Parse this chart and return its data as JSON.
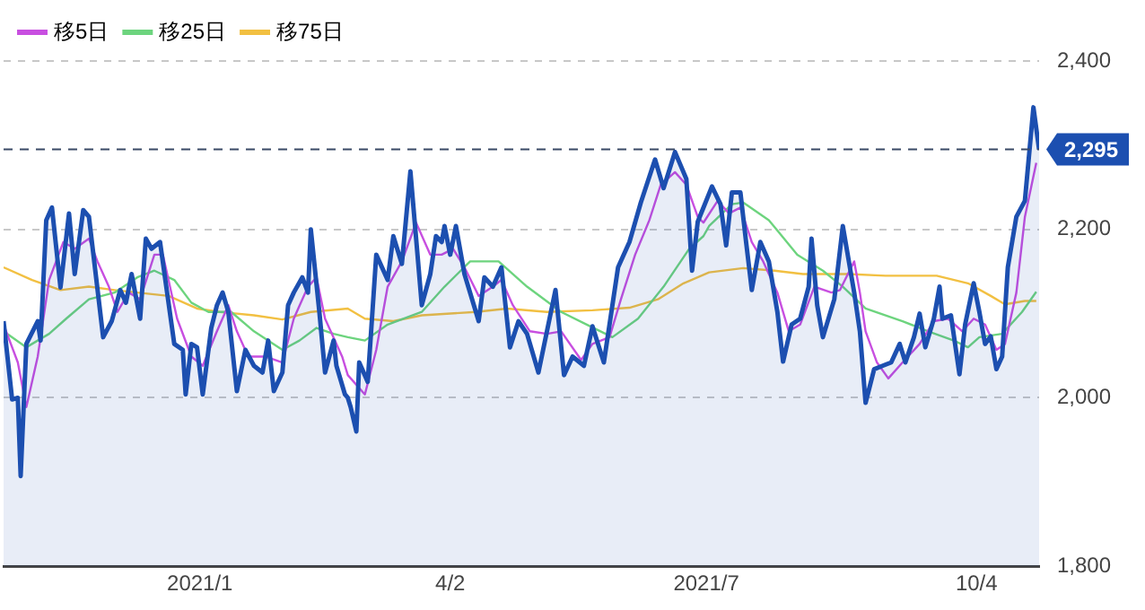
{
  "chart_data": {
    "type": "line",
    "legend": "top left",
    "grid": "y",
    "marker": "none",
    "line_style": "solid",
    "xlim": [
      "2020-10-27",
      "2021-10-26"
    ],
    "xticks": [
      {
        "value": "2021-01-04",
        "label": "2021/1"
      },
      {
        "value": "2021-04-02",
        "label": "4/2"
      },
      {
        "value": "2021-07-01",
        "label": "2021/7"
      },
      {
        "value": "2021-10-04",
        "label": "10/4"
      }
    ],
    "ylim": [
      1800,
      2400
    ],
    "yticks": [
      {
        "value": 1800,
        "label": "1,800"
      },
      {
        "value": 2000,
        "label": "2,000"
      },
      {
        "value": 2200,
        "label": "2,200"
      },
      {
        "value": 2400,
        "label": "2,400"
      }
    ],
    "ref_lines": [
      {
        "axis": "y",
        "value": 2295,
        "label": "2,295",
        "color": "#3a4a66",
        "line_style": "dashed"
      }
    ],
    "series": [
      {
        "type": "area",
        "color": "#1c4fb0",
        "x": [
          "2020-10-27",
          "2020-10-30",
          "2020-11-01",
          "2020-11-02",
          "2020-11-04",
          "2020-11-08",
          "2020-11-09",
          "2020-11-11",
          "2020-11-13",
          "2020-11-16",
          "2020-11-19",
          "2020-11-21",
          "2020-11-24",
          "2020-11-26",
          "2020-12-01",
          "2020-12-04",
          "2020-12-07",
          "2020-12-09",
          "2020-12-11",
          "2020-12-14",
          "2020-12-16",
          "2020-12-18",
          "2020-12-21",
          "2020-12-26",
          "2020-12-29",
          "2020-12-30",
          "2021-01-01",
          "2021-01-03",
          "2021-01-05",
          "2021-01-08",
          "2021-01-10",
          "2021-01-12",
          "2021-01-14",
          "2021-01-17",
          "2021-01-20",
          "2021-01-23",
          "2021-01-26",
          "2021-01-28",
          "2021-01-30",
          "2021-02-02",
          "2021-02-04",
          "2021-02-06",
          "2021-02-09",
          "2021-02-11",
          "2021-02-12",
          "2021-02-15",
          "2021-02-17",
          "2021-02-20",
          "2021-02-21",
          "2021-02-24",
          "2021-02-25",
          "2021-02-26",
          "2021-02-28",
          "2021-03-01",
          "2021-03-04",
          "2021-03-07",
          "2021-03-11",
          "2021-03-13",
          "2021-03-16",
          "2021-03-19",
          "2021-03-23",
          "2021-03-26",
          "2021-03-28",
          "2021-03-30",
          "2021-03-31",
          "2021-04-02",
          "2021-04-04",
          "2021-04-07",
          "2021-04-12",
          "2021-04-14",
          "2021-04-17",
          "2021-04-20",
          "2021-04-23",
          "2021-04-26",
          "2021-04-29",
          "2021-05-03",
          "2021-05-06",
          "2021-05-09",
          "2021-05-12",
          "2021-05-15",
          "2021-05-19",
          "2021-05-22",
          "2021-05-26",
          "2021-05-31",
          "2021-06-04",
          "2021-06-08",
          "2021-06-13",
          "2021-06-16",
          "2021-06-20",
          "2021-06-24",
          "2021-06-26",
          "2021-06-28",
          "2021-07-03",
          "2021-07-06",
          "2021-07-08",
          "2021-07-10",
          "2021-07-13",
          "2021-07-15",
          "2021-07-17",
          "2021-07-20",
          "2021-07-23",
          "2021-07-26",
          "2021-07-28",
          "2021-07-31",
          "2021-08-03",
          "2021-08-06",
          "2021-08-07",
          "2021-08-09",
          "2021-08-11",
          "2021-08-15",
          "2021-08-18",
          "2021-08-22",
          "2021-08-24",
          "2021-08-26",
          "2021-08-29",
          "2021-09-01",
          "2021-09-04",
          "2021-09-07",
          "2021-09-09",
          "2021-09-12",
          "2021-09-14",
          "2021-09-16",
          "2021-09-19",
          "2021-09-21",
          "2021-09-22",
          "2021-09-25",
          "2021-09-28",
          "2021-09-30",
          "2021-10-03",
          "2021-10-05",
          "2021-10-07",
          "2021-10-09",
          "2021-10-11",
          "2021-10-13",
          "2021-10-15",
          "2021-10-18",
          "2021-10-21",
          "2021-10-24",
          "2021-10-26"
        ],
        "values": [
          2091,
          1998,
          2000,
          1907,
          2064,
          2091,
          2068,
          2211,
          2226,
          2131,
          2219,
          2147,
          2223,
          2215,
          2072,
          2091,
          2128,
          2113,
          2147,
          2094,
          2189,
          2177,
          2185,
          2064,
          2057,
          2004,
          2064,
          2060,
          2004,
          2083,
          2110,
          2125,
          2102,
          2008,
          2057,
          2038,
          2030,
          2068,
          2008,
          2030,
          2110,
          2125,
          2143,
          2125,
          2200,
          2102,
          2030,
          2068,
          2038,
          2004,
          2000,
          1989,
          1960,
          2042,
          2019,
          2170,
          2140,
          2192,
          2159,
          2269,
          2110,
          2147,
          2192,
          2185,
          2204,
          2170,
          2204,
          2147,
          2091,
          2143,
          2132,
          2155,
          2060,
          2091,
          2076,
          2030,
          2079,
          2128,
          2027,
          2049,
          2038,
          2085,
          2042,
          2155,
          2185,
          2232,
          2283,
          2249,
          2292,
          2260,
          2151,
          2209,
          2251,
          2230,
          2181,
          2244,
          2244,
          2185,
          2128,
          2185,
          2162,
          2102,
          2043,
          2087,
          2094,
          2132,
          2189,
          2110,
          2072,
          2117,
          2204,
          2125,
          2079,
          1994,
          2034,
          2038,
          2042,
          2064,
          2042,
          2072,
          2100,
          2060,
          2094,
          2132,
          2094,
          2098,
          2028,
          2087,
          2136,
          2102,
          2064,
          2073,
          2034,
          2049,
          2155,
          2215,
          2234,
          2345,
          2295
        ]
      },
      {
        "type": "line",
        "name": "移5日",
        "color": "#c84fe0",
        "x": [
          "2020-10-27",
          "2020-11-01",
          "2020-11-04",
          "2020-11-08",
          "2020-11-12",
          "2020-11-17",
          "2020-11-21",
          "2020-11-26",
          "2020-11-29",
          "2020-12-03",
          "2020-12-06",
          "2020-12-10",
          "2020-12-14",
          "2020-12-19",
          "2020-12-22",
          "2020-12-27",
          "2021-01-01",
          "2021-01-05",
          "2021-01-10",
          "2021-01-14",
          "2021-01-17",
          "2021-01-21",
          "2021-01-27",
          "2021-02-02",
          "2021-02-06",
          "2021-02-11",
          "2021-02-14",
          "2021-02-17",
          "2021-02-23",
          "2021-02-25",
          "2021-03-03",
          "2021-03-07",
          "2021-03-11",
          "2021-03-16",
          "2021-03-21",
          "2021-03-26",
          "2021-03-30",
          "2021-04-03",
          "2021-04-07",
          "2021-04-12",
          "2021-04-17",
          "2021-04-20",
          "2021-04-24",
          "2021-04-30",
          "2021-05-06",
          "2021-05-11",
          "2021-05-18",
          "2021-05-22",
          "2021-05-28",
          "2021-06-01",
          "2021-06-06",
          "2021-06-11",
          "2021-06-15",
          "2021-06-20",
          "2021-06-24",
          "2021-06-28",
          "2021-06-30",
          "2021-07-05",
          "2021-07-09",
          "2021-07-13",
          "2021-07-17",
          "2021-07-21",
          "2021-07-26",
          "2021-07-30",
          "2021-08-03",
          "2021-08-08",
          "2021-08-14",
          "2021-08-17",
          "2021-08-22",
          "2021-08-24",
          "2021-08-26",
          "2021-08-30",
          "2021-09-03",
          "2021-09-08",
          "2021-09-14",
          "2021-09-19",
          "2021-09-24",
          "2021-09-29",
          "2021-10-03",
          "2021-10-07",
          "2021-10-11",
          "2021-10-14",
          "2021-10-18",
          "2021-10-21",
          "2021-10-25"
        ],
        "values": [
          2087,
          2042,
          1989,
          2049,
          2140,
          2185,
          2177,
          2189,
          2162,
          2132,
          2102,
          2125,
          2117,
          2170,
          2170,
          2094,
          2049,
          2038,
          2079,
          2110,
          2079,
          2049,
          2049,
          2042,
          2094,
          2132,
          2143,
          2094,
          2049,
          2027,
          2004,
          2057,
          2132,
          2162,
          2208,
          2170,
          2170,
          2177,
          2155,
          2121,
          2132,
          2140,
          2110,
          2079,
          2076,
          2079,
          2045,
          2064,
          2072,
          2117,
          2170,
          2211,
          2253,
          2268,
          2253,
          2215,
          2208,
          2234,
          2219,
          2226,
          2185,
          2162,
          2125,
          2079,
          2087,
          2132,
          2125,
          2128,
          2162,
          2125,
          2079,
          2042,
          2023,
          2042,
          2064,
          2091,
          2094,
          2079,
          2094,
          2087,
          2057,
          2064,
          2125,
          2215,
          2279
        ]
      },
      {
        "type": "line",
        "name": "移25日",
        "color": "#6dd47e",
        "x": [
          "2020-10-27",
          "2020-11-04",
          "2020-11-12",
          "2020-11-18",
          "2020-11-26",
          "2020-12-05",
          "2020-12-13",
          "2020-12-19",
          "2020-12-26",
          "2021-01-01",
          "2021-01-07",
          "2021-01-15",
          "2021-01-23",
          "2021-02-02",
          "2021-02-08",
          "2021-02-14",
          "2021-02-20",
          "2021-02-25",
          "2021-03-03",
          "2021-03-11",
          "2021-03-23",
          "2021-03-31",
          "2021-04-09",
          "2021-04-19",
          "2021-04-29",
          "2021-05-11",
          "2021-05-20",
          "2021-05-29",
          "2021-06-07",
          "2021-06-16",
          "2021-06-25",
          "2021-06-30",
          "2021-07-02",
          "2021-07-10",
          "2021-07-14",
          "2021-07-23",
          "2021-08-02",
          "2021-08-11",
          "2021-08-18",
          "2021-08-26",
          "2021-09-08",
          "2021-09-17",
          "2021-09-26",
          "2021-10-01",
          "2021-10-05",
          "2021-10-13",
          "2021-10-20",
          "2021-10-25"
        ],
        "values": [
          2079,
          2060,
          2076,
          2094,
          2117,
          2125,
          2143,
          2151,
          2140,
          2113,
          2102,
          2102,
          2079,
          2057,
          2068,
          2083,
          2076,
          2072,
          2068,
          2087,
          2102,
          2132,
          2162,
          2162,
          2132,
          2102,
          2087,
          2072,
          2094,
          2132,
          2177,
          2192,
          2204,
          2230,
          2232,
          2211,
          2170,
          2151,
          2132,
          2106,
          2091,
          2079,
          2068,
          2060,
          2072,
          2076,
          2102,
          2126
        ]
      },
      {
        "type": "line",
        "name": "移75日",
        "color": "#f2c042",
        "x": [
          "2020-10-27",
          "2020-11-06",
          "2020-11-16",
          "2020-11-26",
          "2020-12-05",
          "2020-12-13",
          "2020-12-24",
          "2021-01-03",
          "2021-01-11",
          "2021-01-23",
          "2021-02-02",
          "2021-02-12",
          "2021-02-25",
          "2021-03-03",
          "2021-03-13",
          "2021-03-23",
          "2021-04-11",
          "2021-04-22",
          "2021-05-06",
          "2021-05-22",
          "2021-06-04",
          "2021-06-14",
          "2021-06-23",
          "2021-07-02",
          "2021-07-14",
          "2021-07-25",
          "2021-08-04",
          "2021-08-20",
          "2021-09-02",
          "2021-09-20",
          "2021-10-01",
          "2021-10-09",
          "2021-10-14",
          "2021-10-21",
          "2021-10-25"
        ],
        "values": [
          2155,
          2140,
          2128,
          2132,
          2128,
          2125,
          2121,
          2106,
          2102,
          2098,
          2093,
          2102,
          2106,
          2094,
          2091,
          2098,
          2102,
          2106,
          2102,
          2104,
          2107,
          2117,
          2136,
          2149,
          2154,
          2151,
          2147,
          2147,
          2145,
          2145,
          2136,
          2121,
          2111,
          2115,
          2115
        ]
      }
    ]
  }
}
